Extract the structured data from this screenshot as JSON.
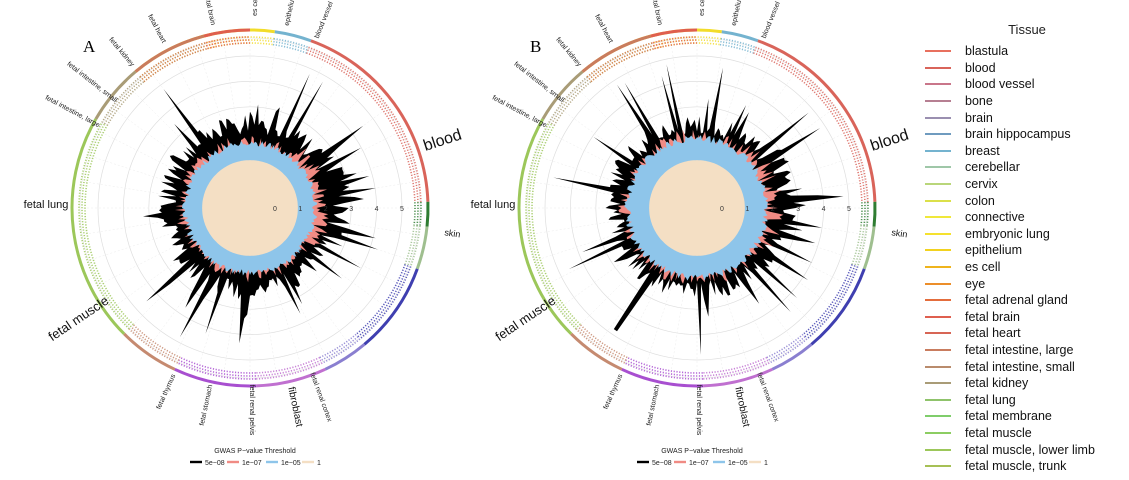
{
  "chart_data": [
    {
      "type": "radial-area",
      "panel_label": "A",
      "title": "",
      "radial_axis": {
        "ticks": [
          "0",
          "1",
          "2",
          "3",
          "4",
          "5"
        ],
        "range": [
          0,
          5
        ]
      },
      "sector_labels_large": [
        "blood",
        "skin",
        "fetal lung",
        "fetal muscle",
        "fibroblast"
      ],
      "sector_labels_small": [
        "fetal intestine, large",
        "fetal intestine, small",
        "fetal kidney",
        "fetal heart",
        "fetal brain",
        "es cell",
        "epithelium",
        "blood vessel",
        "fetal renal cortex",
        "fetal renal pelvis",
        "fetal stomach",
        "fetal thymus"
      ],
      "series": [
        {
          "name": "5e-08",
          "color": "#000000",
          "peak_value": 4.8
        },
        {
          "name": "1e-07",
          "color": "#f08b84",
          "peak_value": 2.2
        },
        {
          "name": "1e-05",
          "color": "#8ec5ea",
          "peak_value": 1.7
        },
        {
          "name": "1",
          "color": "#f4dfc4",
          "peak_value": 0.9
        }
      ],
      "bottom_legend_title": "GWAS P−value Threshold"
    },
    {
      "type": "radial-area",
      "panel_label": "B",
      "title": "",
      "radial_axis": {
        "ticks": [
          "0",
          "1",
          "2",
          "3",
          "4",
          "5"
        ],
        "range": [
          0,
          5
        ]
      },
      "sector_labels_large": [
        "blood",
        "skin",
        "fetal lung",
        "fetal muscle",
        "fibroblast"
      ],
      "sector_labels_small": [
        "fetal intestine, large",
        "fetal intestine, small",
        "fetal kidney",
        "fetal heart",
        "fetal brain",
        "es cell",
        "epithelium",
        "blood vessel",
        "fetal renal cortex",
        "fetal renal pelvis",
        "fetal stomach",
        "fetal thymus"
      ],
      "series": [
        {
          "name": "5e-08",
          "color": "#000000",
          "peak_value": 4.8
        },
        {
          "name": "1e-07",
          "color": "#f08b84",
          "peak_value": 2.4
        },
        {
          "name": "1e-05",
          "color": "#8ec5ea",
          "peak_value": 1.9
        },
        {
          "name": "1",
          "color": "#f4dfc4",
          "peak_value": 0.9
        }
      ],
      "bottom_legend_title": "GWAS P−value Threshold"
    }
  ],
  "legend": {
    "title": "Tissue",
    "items": [
      {
        "label": "blastula",
        "color": "#e8705e"
      },
      {
        "label": "blood",
        "color": "#d9645a"
      },
      {
        "label": "blood vessel",
        "color": "#c9768a"
      },
      {
        "label": "bone",
        "color": "#b67f92"
      },
      {
        "label": "brain",
        "color": "#9a8fb0"
      },
      {
        "label": "brain hippocampus",
        "color": "#6f9bbf"
      },
      {
        "label": "breast",
        "color": "#74b3cf"
      },
      {
        "label": "cerebellar",
        "color": "#9fc7a8"
      },
      {
        "label": "cervix",
        "color": "#b9d67a"
      },
      {
        "label": "colon",
        "color": "#dbe04a"
      },
      {
        "label": "connective",
        "color": "#f0e83a"
      },
      {
        "label": "embryonic lung",
        "color": "#f5e12e"
      },
      {
        "label": "epithelium",
        "color": "#f2d21f"
      },
      {
        "label": "es cell",
        "color": "#efb41c"
      },
      {
        "label": "eye",
        "color": "#ec8e2a"
      },
      {
        "label": "fetal adrenal gland",
        "color": "#e46d3c"
      },
      {
        "label": "fetal brain",
        "color": "#df5f4f"
      },
      {
        "label": "fetal heart",
        "color": "#d76555"
      },
      {
        "label": "fetal intestine, large",
        "color": "#c97c5e"
      },
      {
        "label": "fetal intestine, small",
        "color": "#b98b6c"
      },
      {
        "label": "fetal kidney",
        "color": "#a99c77"
      },
      {
        "label": "fetal lung",
        "color": "#8fc36b"
      },
      {
        "label": "fetal membrane",
        "color": "#7fcd6b"
      },
      {
        "label": "fetal muscle",
        "color": "#8ccd62"
      },
      {
        "label": "fetal muscle, lower limb",
        "color": "#9cc75a"
      },
      {
        "label": "fetal muscle, trunk",
        "color": "#a6c055"
      }
    ]
  },
  "bottom_legend": {
    "title": "GWAS P−value Threshold",
    "items": [
      {
        "label": "5e−08",
        "color": "#000000"
      },
      {
        "label": "1e−07",
        "color": "#f08b84"
      },
      {
        "label": "1e−05",
        "color": "#8ec5ea"
      },
      {
        "label": "1",
        "color": "#f4dfc4"
      }
    ]
  }
}
